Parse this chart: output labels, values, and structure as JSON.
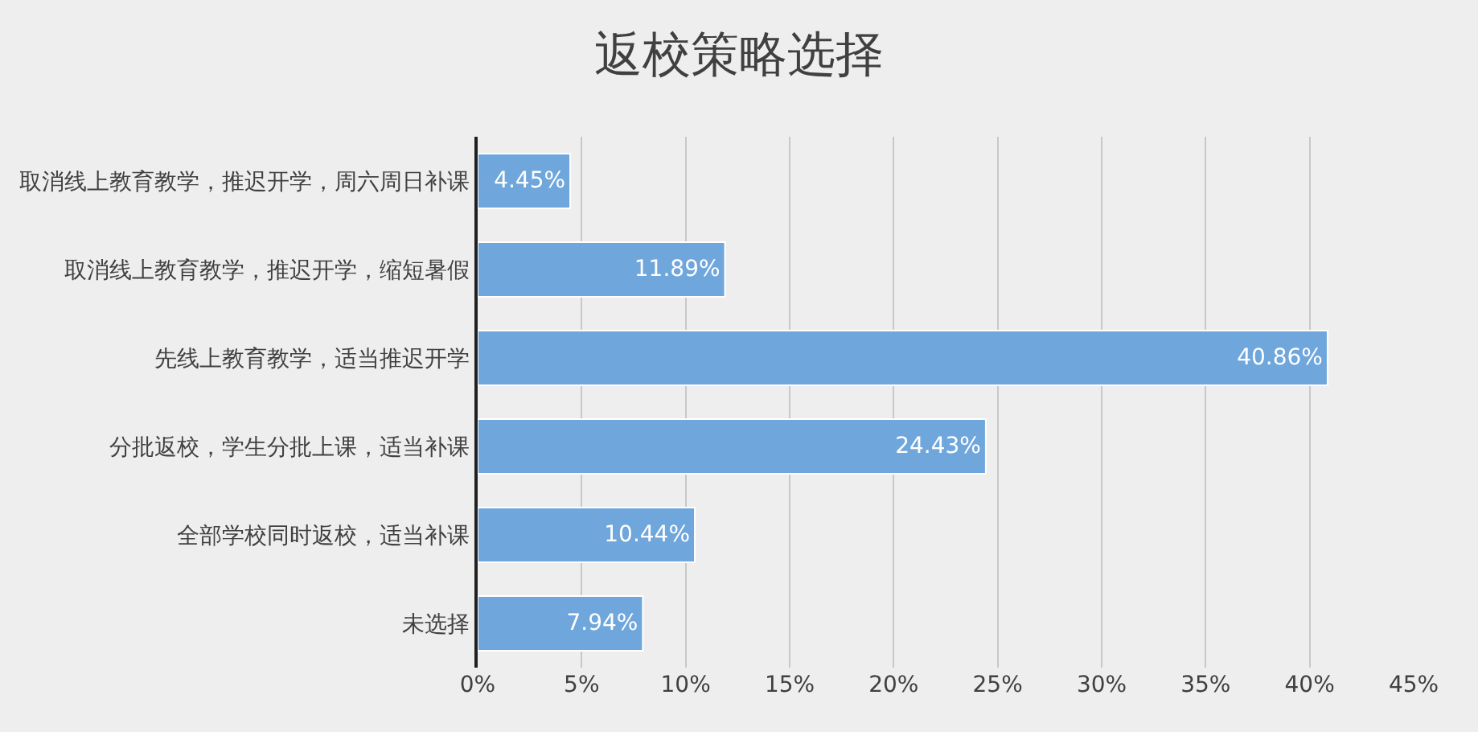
{
  "chart_data": {
    "type": "bar",
    "orientation": "horizontal",
    "title": "返校策略选择",
    "categories": [
      "取消线上教育教学，推迟开学，周六周日补课",
      "取消线上教育教学，推迟开学，缩短暑假",
      "先线上教育教学，适当推迟开学",
      "分批返校，学生分批上课，适当补课",
      "全部学校同时返校，适当补课",
      "未选择"
    ],
    "values": [
      4.45,
      11.89,
      40.86,
      24.43,
      10.44,
      7.94
    ],
    "value_labels": [
      "4.45%",
      "11.89%",
      "40.86%",
      "24.43%",
      "10.44%",
      "7.94%"
    ],
    "color": "#6fa6dc",
    "xlim": [
      0,
      45
    ],
    "xticks": [
      {
        "value": 0,
        "label": "0%"
      },
      {
        "value": 5,
        "label": "5%"
      },
      {
        "value": 10,
        "label": "10%"
      },
      {
        "value": 15,
        "label": "15%"
      },
      {
        "value": 20,
        "label": "20%"
      },
      {
        "value": 25,
        "label": "25%"
      },
      {
        "value": 30,
        "label": "30%"
      },
      {
        "value": 35,
        "label": "35%"
      },
      {
        "value": 40,
        "label": "40%"
      },
      {
        "value": 45,
        "label": "45%"
      }
    ],
    "grid": "x",
    "legend": false
  }
}
